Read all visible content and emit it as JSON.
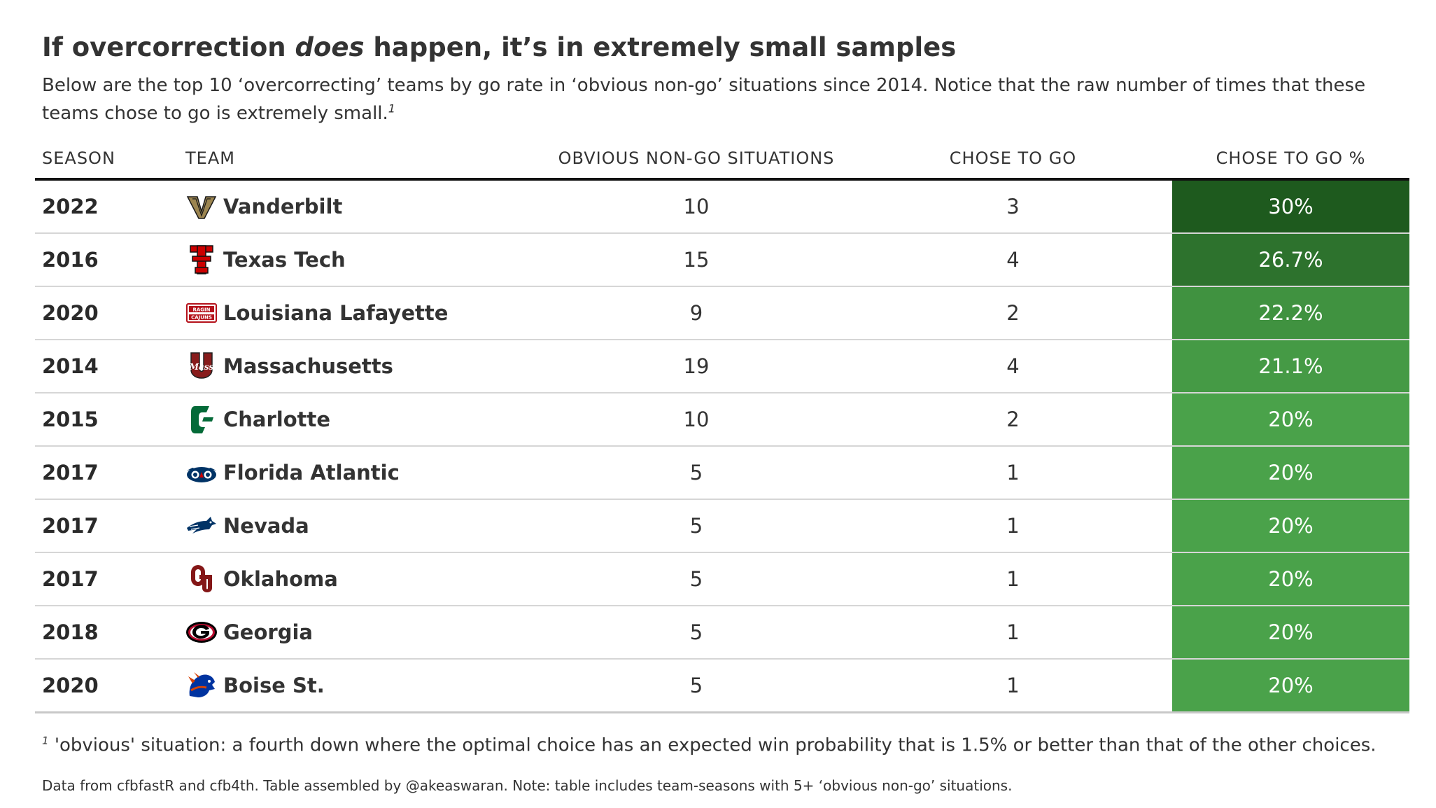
{
  "title_parts": {
    "before": "If overcorrection ",
    "emph": "does",
    "after": " happen, it’s in extremely small samples"
  },
  "subtitle": "Below are the top 10 ‘overcorrecting’ teams by go rate in ‘obvious non-go’ situations since 2014. Notice that the raw number of times that these teams chose to go is extremely small.",
  "subtitle_footnote_mark": "1",
  "columns": [
    "SEASON",
    "TEAM",
    "OBVIOUS NON-GO SITUATIONS",
    "CHOSE TO GO",
    "CHOSE TO GO %"
  ],
  "chart_data": {
    "type": "table",
    "rows": [
      {
        "season": "2022",
        "team": "Vanderbilt",
        "logo": "vanderbilt-logo",
        "situations": 10,
        "chose_to_go": 3,
        "pct": "30%",
        "pct_value": 30.0
      },
      {
        "season": "2016",
        "team": "Texas Tech",
        "logo": "texas-tech-logo",
        "situations": 15,
        "chose_to_go": 4,
        "pct": "26.7%",
        "pct_value": 26.7
      },
      {
        "season": "2020",
        "team": "Louisiana Lafayette",
        "logo": "louisiana-lafayette-logo",
        "situations": 9,
        "chose_to_go": 2,
        "pct": "22.2%",
        "pct_value": 22.2
      },
      {
        "season": "2014",
        "team": "Massachusetts",
        "logo": "massachusetts-logo",
        "situations": 19,
        "chose_to_go": 4,
        "pct": "21.1%",
        "pct_value": 21.1
      },
      {
        "season": "2015",
        "team": "Charlotte",
        "logo": "charlotte-logo",
        "situations": 10,
        "chose_to_go": 2,
        "pct": "20%",
        "pct_value": 20.0
      },
      {
        "season": "2017",
        "team": "Florida Atlantic",
        "logo": "florida-atlantic-logo",
        "situations": 5,
        "chose_to_go": 1,
        "pct": "20%",
        "pct_value": 20.0
      },
      {
        "season": "2017",
        "team": "Nevada",
        "logo": "nevada-logo",
        "situations": 5,
        "chose_to_go": 1,
        "pct": "20%",
        "pct_value": 20.0
      },
      {
        "season": "2017",
        "team": "Oklahoma",
        "logo": "oklahoma-logo",
        "situations": 5,
        "chose_to_go": 1,
        "pct": "20%",
        "pct_value": 20.0
      },
      {
        "season": "2018",
        "team": "Georgia",
        "logo": "georgia-logo",
        "situations": 5,
        "chose_to_go": 1,
        "pct": "20%",
        "pct_value": 20.0
      },
      {
        "season": "2020",
        "team": "Boise St.",
        "logo": "boise-state-logo",
        "situations": 5,
        "chose_to_go": 1,
        "pct": "20%",
        "pct_value": 20.0
      }
    ]
  },
  "colors": {
    "pct_high": "#1e5a1e",
    "pct_low": "#4aa24a"
  },
  "footnote_mark": "1",
  "footnote": "'obvious' situation: a fourth down where the optimal choice has an expected win probability that is 1.5% or better than that of the other choices.",
  "source": "Data from cfbfastR and cfb4th. Table assembled by @akeaswaran. Note: table includes team-seasons with 5+ ‘obvious non-go’ situations."
}
